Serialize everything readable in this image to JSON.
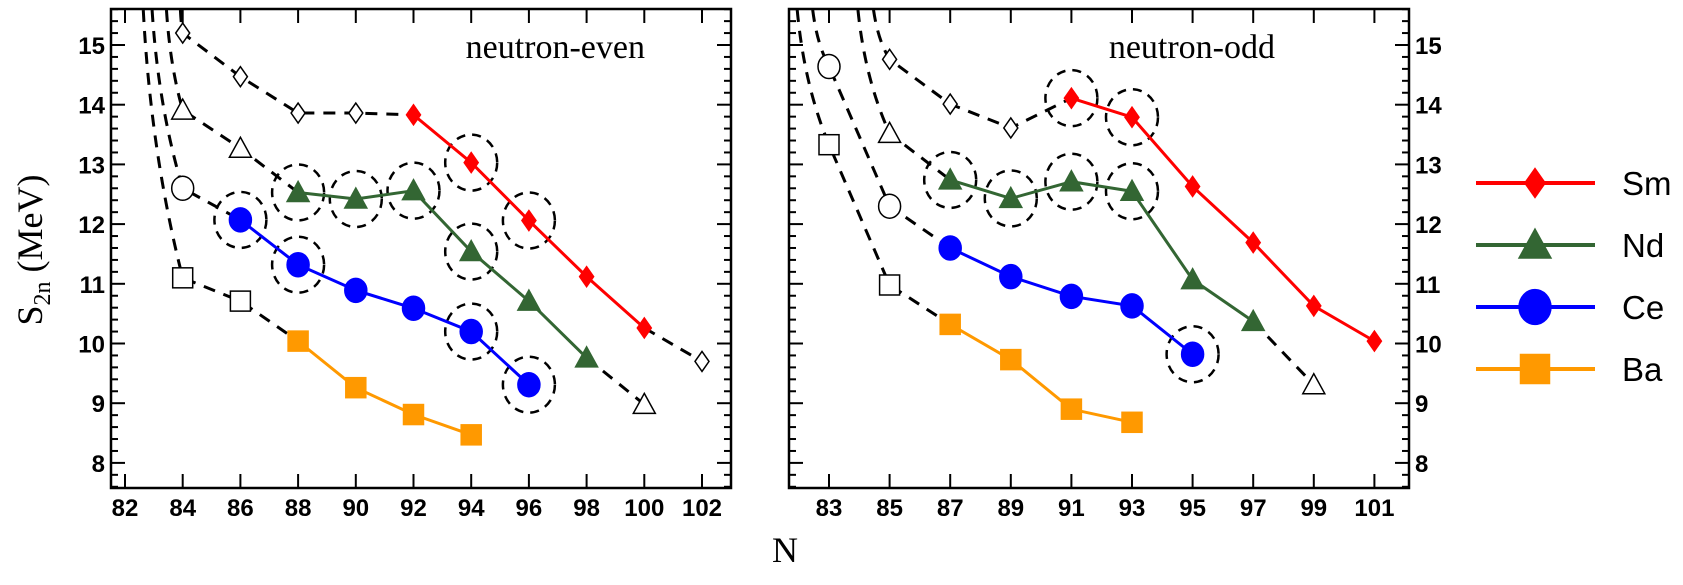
{
  "chart_data": [
    {
      "type": "line",
      "panel_label": "neutron-even",
      "xlabel": "N",
      "ylabel": "S2n (MeV)",
      "xlim": [
        81.5,
        103
      ],
      "ylim": [
        7.6,
        15.6
      ],
      "x_ticks": [
        82,
        84,
        86,
        88,
        90,
        92,
        94,
        96,
        98,
        100,
        102
      ],
      "y_ticks": [
        8,
        9,
        10,
        11,
        12,
        13,
        14,
        15
      ],
      "y_tick_side": "left",
      "grid": false,
      "series": [
        {
          "name": "Sm",
          "color": "#ff0000",
          "marker": "diamond",
          "points": [
            [
              92,
              13.83
            ],
            [
              94,
              13.03
            ],
            [
              96,
              12.06
            ],
            [
              98,
              11.12
            ],
            [
              100,
              10.26
            ]
          ],
          "open_points": [
            [
              84,
              15.2
            ],
            [
              86,
              14.47
            ],
            [
              88,
              13.86
            ],
            [
              90,
              13.86
            ],
            [
              92,
              13.83
            ]
          ],
          "open_tail": [
            [
              100,
              10.26
            ],
            [
              102,
              9.7
            ]
          ]
        },
        {
          "name": "Nd",
          "color": "#336633",
          "marker": "triangle",
          "points": [
            [
              88,
              12.53
            ],
            [
              90,
              12.42
            ],
            [
              92,
              12.56
            ],
            [
              94,
              11.54
            ],
            [
              96,
              10.71
            ],
            [
              98,
              9.76
            ]
          ],
          "open_points": [
            [
              84,
              13.91
            ],
            [
              86,
              13.27
            ],
            [
              88,
              12.53
            ]
          ],
          "open_tail": [
            [
              98,
              9.76
            ],
            [
              100,
              8.98
            ]
          ]
        },
        {
          "name": "Ce",
          "color": "#0000ff",
          "marker": "circle",
          "points": [
            [
              86,
              12.07
            ],
            [
              88,
              11.32
            ],
            [
              90,
              10.89
            ],
            [
              92,
              10.59
            ],
            [
              94,
              10.2
            ],
            [
              96,
              9.31
            ]
          ],
          "open_points": [
            [
              84,
              12.6
            ],
            [
              86,
              12.07
            ]
          ],
          "open_tail": []
        },
        {
          "name": "Ba",
          "color": "#ff9900",
          "marker": "square",
          "points": [
            [
              88,
              10.04
            ],
            [
              90,
              9.26
            ],
            [
              92,
              8.81
            ],
            [
              94,
              8.47
            ]
          ],
          "open_points": [
            [
              84,
              11.1
            ],
            [
              86,
              10.71
            ],
            [
              88,
              10.04
            ]
          ],
          "open_tail": []
        }
      ],
      "circled_points": [
        [
          "Ce",
          86
        ],
        [
          "Ce",
          88
        ],
        [
          "Nd",
          88
        ],
        [
          "Nd",
          90
        ],
        [
          "Nd",
          92
        ],
        [
          "Sm",
          94
        ],
        [
          "Nd",
          94
        ],
        [
          "Sm",
          96
        ],
        [
          "Ce",
          94
        ],
        [
          "Ce",
          96
        ]
      ]
    },
    {
      "type": "line",
      "panel_label": "neutron-odd",
      "xlabel": "N",
      "ylabel": "S2n (MeV)",
      "xlim": [
        81.7,
        102.2
      ],
      "ylim": [
        7.6,
        15.6
      ],
      "x_ticks": [
        83,
        85,
        87,
        89,
        91,
        93,
        95,
        97,
        99,
        101
      ],
      "y_ticks": [
        8,
        9,
        10,
        11,
        12,
        13,
        14,
        15
      ],
      "y_tick_side": "right",
      "grid": false,
      "series": [
        {
          "name": "Sm",
          "color": "#ff0000",
          "marker": "diamond",
          "points": [
            [
              91,
              14.11
            ],
            [
              93,
              13.79
            ],
            [
              95,
              12.63
            ],
            [
              97,
              11.69
            ],
            [
              99,
              10.63
            ],
            [
              101,
              10.04
            ]
          ],
          "open_points": [
            [
              85,
              14.76
            ],
            [
              87,
              14.01
            ],
            [
              89,
              13.61
            ],
            [
              91,
              14.11
            ]
          ],
          "open_tail": []
        },
        {
          "name": "Nd",
          "color": "#336633",
          "marker": "triangle",
          "points": [
            [
              87,
              12.74
            ],
            [
              89,
              12.43
            ],
            [
              91,
              12.71
            ],
            [
              93,
              12.55
            ],
            [
              95,
              11.07
            ],
            [
              97,
              10.37
            ]
          ],
          "open_points": [
            [
              85,
              13.52
            ],
            [
              87,
              12.74
            ]
          ],
          "open_tail": [
            [
              97,
              10.37
            ],
            [
              99,
              9.31
            ]
          ]
        },
        {
          "name": "Ce",
          "color": "#0000ff",
          "marker": "circle",
          "points": [
            [
              87,
              11.6
            ],
            [
              89,
              11.12
            ],
            [
              91,
              10.79
            ],
            [
              93,
              10.63
            ],
            [
              95,
              9.82
            ]
          ],
          "open_points": [
            [
              83,
              14.64
            ],
            [
              85,
              12.3
            ],
            [
              87,
              11.6
            ]
          ],
          "open_tail": []
        },
        {
          "name": "Ba",
          "color": "#ff9900",
          "marker": "square",
          "points": [
            [
              87,
              10.32
            ],
            [
              89,
              9.73
            ],
            [
              91,
              8.9
            ],
            [
              93,
              8.68
            ]
          ],
          "open_points": [
            [
              83,
              13.33
            ],
            [
              85,
              10.98
            ],
            [
              87,
              10.32
            ]
          ],
          "open_tail": []
        }
      ],
      "circled_points": [
        [
          "Sm",
          91
        ],
        [
          "Sm",
          93
        ],
        [
          "Nd",
          87
        ],
        [
          "Nd",
          89
        ],
        [
          "Nd",
          91
        ],
        [
          "Nd",
          93
        ],
        [
          "Ce",
          95
        ]
      ]
    }
  ],
  "legend": {
    "placement": "right",
    "entries": [
      {
        "name": "Sm",
        "color": "#ff0000",
        "marker": "diamond"
      },
      {
        "name": "Nd",
        "color": "#336633",
        "marker": "triangle"
      },
      {
        "name": "Ce",
        "color": "#0000ff",
        "marker": "circle"
      },
      {
        "name": "Ba",
        "color": "#ff9900",
        "marker": "square"
      }
    ]
  },
  "labels": {
    "ylabel_main": "S",
    "ylabel_sub": "2n",
    "ylabel_unit": " (MeV)",
    "xlabel": "N"
  }
}
